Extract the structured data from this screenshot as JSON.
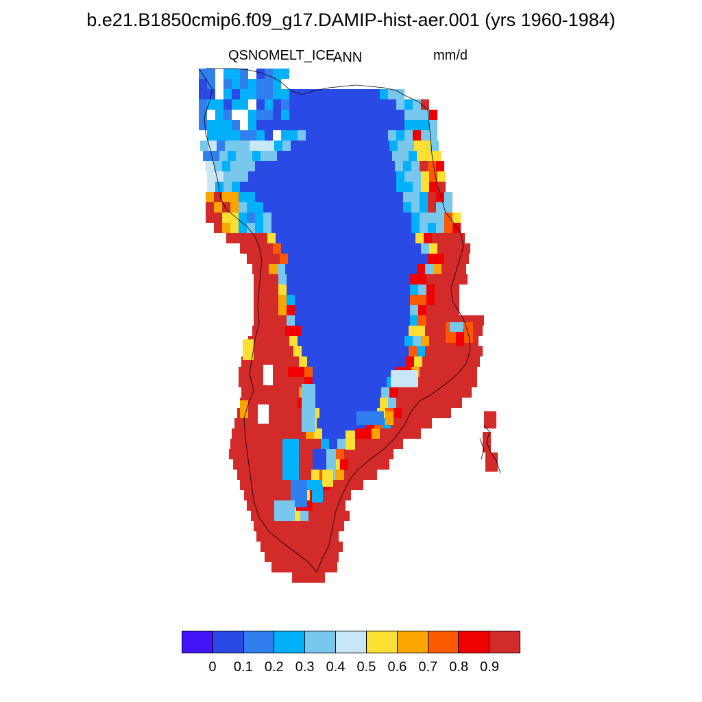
{
  "header": {
    "title": "b.e21.B1850cmip6.f09_g17.DAMIP-hist-aer.001 (yrs 1960-1984)",
    "variable": "QSNOMELT_ICE",
    "season": "ANN",
    "units": "mm/d"
  },
  "colorbar": {
    "colors": [
      "#4314f5",
      "#2a4ae6",
      "#2f80ee",
      "#03b0fa",
      "#78c8ee",
      "#c9e6f6",
      "#fbe033",
      "#fba500",
      "#fb5a00",
      "#f00000",
      "#d32a2a"
    ],
    "labels": [
      "0",
      "0.1",
      "0.2",
      "0.3",
      "0.4",
      "0.5",
      "0.6",
      "0.7",
      "0.8",
      "0.9"
    ]
  },
  "map": {
    "region": "Greenland",
    "ocean_color": "#ffffff",
    "coastline_color": "#000000"
  }
}
